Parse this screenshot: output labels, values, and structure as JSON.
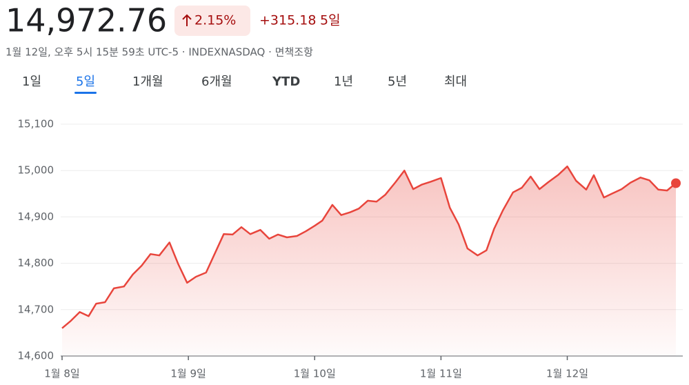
{
  "header": {
    "price": "14,972.76",
    "change_pct": "2.15%",
    "change_abs": "+315.18",
    "period": "5일",
    "subtitle": "1월 12일, 오후 5시 15분 59초 UTC-5 · INDEXNASDAQ · 면책조항"
  },
  "tabs": {
    "items": [
      "1일",
      "5일",
      "1개월",
      "6개월",
      "YTD",
      "1년",
      "5년",
      "최대"
    ],
    "active": 1
  },
  "chart_data": {
    "type": "line",
    "color": "#e8453c",
    "grid": true,
    "x": [
      0,
      0.07,
      0.14,
      0.21,
      0.27,
      0.34,
      0.41,
      0.49,
      0.56,
      0.63,
      0.7,
      0.77,
      0.85,
      0.92,
      0.99,
      1.06,
      1.14,
      1.28,
      1.35,
      1.42,
      1.49,
      1.57,
      1.64,
      1.71,
      1.78,
      1.86,
      1.93,
      2.0,
      2.06,
      2.14,
      2.21,
      2.28,
      2.35,
      2.42,
      2.49,
      2.56,
      2.64,
      2.71,
      2.78,
      2.85,
      2.92,
      3.0,
      3.07,
      3.14,
      3.21,
      3.29,
      3.36,
      3.42,
      3.49,
      3.57,
      3.64,
      3.71,
      3.78,
      3.85,
      3.93,
      4.0,
      4.07,
      4.15,
      4.21,
      4.29,
      4.36,
      4.43,
      4.5,
      4.58,
      4.65,
      4.72,
      4.79,
      4.86
    ],
    "values": [
      14660,
      14676,
      14695,
      14686,
      14713,
      14716,
      14746,
      14750,
      14776,
      14795,
      14820,
      14817,
      14845,
      14798,
      14758,
      14771,
      14780,
      14863,
      14862,
      14878,
      14863,
      14872,
      14853,
      14862,
      14856,
      14859,
      14869,
      14881,
      14892,
      14926,
      14904,
      14910,
      14918,
      14935,
      14933,
      14948,
      14975,
      15000,
      14960,
      14970,
      14976,
      14984,
      14920,
      14884,
      14832,
      14817,
      14828,
      14874,
      14914,
      14953,
      14963,
      14987,
      14960,
      14975,
      14991,
      15009,
      14978,
      14959,
      14990,
      14942,
      14951,
      14960,
      14974,
      14985,
      14979,
      14959,
      14957,
      14972.76
    ],
    "xlim": [
      0,
      4.86
    ],
    "xticks": [
      {
        "value": 0,
        "label": "1월 8일"
      },
      {
        "value": 1,
        "label": "1월 9일"
      },
      {
        "value": 2,
        "label": "1월 10일"
      },
      {
        "value": 3,
        "label": "1월 11일"
      },
      {
        "value": 4,
        "label": "1월 12일"
      }
    ],
    "ylim": [
      14600,
      15100
    ],
    "yticks": [
      {
        "value": 14600,
        "label": "14,600"
      },
      {
        "value": 14700,
        "label": "14,700"
      },
      {
        "value": 14800,
        "label": "14,800"
      },
      {
        "value": 14900,
        "label": "14,900"
      },
      {
        "value": 15000,
        "label": "15,000"
      },
      {
        "value": 15100,
        "label": "15,100"
      }
    ]
  }
}
